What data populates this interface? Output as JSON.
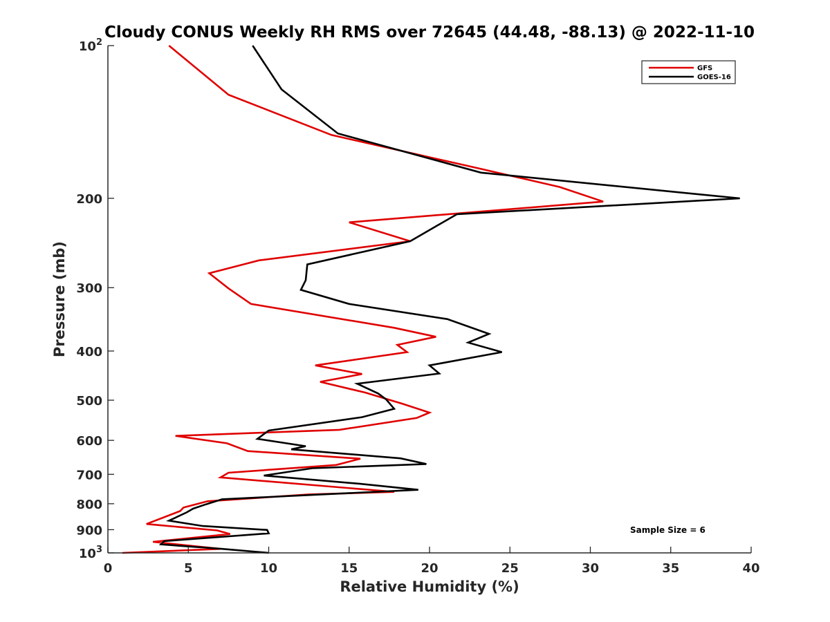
{
  "chart_data": {
    "type": "line",
    "title": "Cloudy CONUS Weekly RH RMS over 72645 (44.48, -88.13) @ 2022-11-10",
    "xlabel": "Relative Humidity (%)",
    "ylabel": "Pressure (mb)",
    "xlim": [
      0,
      40
    ],
    "ylim": [
      100,
      1000
    ],
    "y_scale": "log",
    "y_reversed": true,
    "x_ticks": [
      "0",
      "5",
      "10",
      "15",
      "20",
      "25",
      "30",
      "35",
      "40"
    ],
    "y_ticks": [
      {
        "value": 100,
        "label": "10",
        "sup": "2"
      },
      {
        "value": 200,
        "label": "200",
        "sup": ""
      },
      {
        "value": 300,
        "label": "300",
        "sup": ""
      },
      {
        "value": 400,
        "label": "400",
        "sup": ""
      },
      {
        "value": 500,
        "label": "500",
        "sup": ""
      },
      {
        "value": 600,
        "label": "600",
        "sup": ""
      },
      {
        "value": 700,
        "label": "700",
        "sup": ""
      },
      {
        "value": 800,
        "label": "800",
        "sup": ""
      },
      {
        "value": 900,
        "label": "900",
        "sup": ""
      },
      {
        "value": 1000,
        "label": "10",
        "sup": "3"
      }
    ],
    "grid": false,
    "legend_position": "top-right",
    "annotation": "Sample Size = 6",
    "series": [
      {
        "name": "GFS",
        "color": "#e00000",
        "points": [
          [
            3.8,
            100
          ],
          [
            7.5,
            125
          ],
          [
            13.9,
            150
          ],
          [
            23.2,
            175
          ],
          [
            28.1,
            190
          ],
          [
            30.8,
            203
          ],
          [
            15.0,
            223
          ],
          [
            18.8,
            243
          ],
          [
            9.4,
            265
          ],
          [
            6.3,
            281
          ],
          [
            7.5,
            301
          ],
          [
            8.9,
            323
          ],
          [
            17.8,
            360
          ],
          [
            20.4,
            375
          ],
          [
            18.0,
            389
          ],
          [
            18.6,
            402
          ],
          [
            12.9,
            427
          ],
          [
            15.8,
            444
          ],
          [
            13.2,
            460
          ],
          [
            16.0,
            483
          ],
          [
            18.3,
            508
          ],
          [
            20.0,
            529
          ],
          [
            19.2,
            542
          ],
          [
            14.4,
            572
          ],
          [
            4.2,
            588
          ],
          [
            7.4,
            608
          ],
          [
            8.7,
            630
          ],
          [
            15.7,
            652
          ],
          [
            14.2,
            671
          ],
          [
            7.5,
            695
          ],
          [
            7.0,
            710
          ],
          [
            17.8,
            758
          ],
          [
            12.5,
            767
          ],
          [
            6.2,
            791
          ],
          [
            4.7,
            814
          ],
          [
            4.5,
            827
          ],
          [
            2.4,
            877
          ],
          [
            6.8,
            903
          ],
          [
            7.6,
            918
          ],
          [
            2.8,
            951
          ],
          [
            7.0,
            982
          ],
          [
            0.9,
            1000
          ]
        ]
      },
      {
        "name": "GOES-16",
        "color": "#000000",
        "points": [
          [
            9.0,
            100
          ],
          [
            10.8,
            122
          ],
          [
            14.3,
            149
          ],
          [
            23.2,
            178
          ],
          [
            39.3,
            200
          ],
          [
            21.7,
            215
          ],
          [
            18.8,
            243
          ],
          [
            12.4,
            270
          ],
          [
            12.3,
            290
          ],
          [
            12.0,
            303
          ],
          [
            15.0,
            323
          ],
          [
            21.1,
            346
          ],
          [
            23.7,
            370
          ],
          [
            22.4,
            385
          ],
          [
            24.5,
            402
          ],
          [
            20.0,
            427
          ],
          [
            20.6,
            443
          ],
          [
            15.5,
            464
          ],
          [
            16.8,
            485
          ],
          [
            17.3,
            498
          ],
          [
            17.8,
            520
          ],
          [
            15.8,
            540
          ],
          [
            10.0,
            574
          ],
          [
            9.3,
            596
          ],
          [
            12.3,
            616
          ],
          [
            11.4,
            625
          ],
          [
            18.2,
            651
          ],
          [
            19.8,
            668
          ],
          [
            12.7,
            681
          ],
          [
            9.7,
            704
          ],
          [
            15.7,
            731
          ],
          [
            19.3,
            751
          ],
          [
            7.1,
            784
          ],
          [
            6.1,
            802
          ],
          [
            5.3,
            818
          ],
          [
            4.9,
            832
          ],
          [
            3.8,
            864
          ],
          [
            5.9,
            885
          ],
          [
            9.9,
            901
          ],
          [
            10.0,
            915
          ],
          [
            3.5,
            948
          ],
          [
            3.3,
            962
          ],
          [
            7.1,
            982
          ],
          [
            10.0,
            1000
          ]
        ]
      }
    ]
  }
}
